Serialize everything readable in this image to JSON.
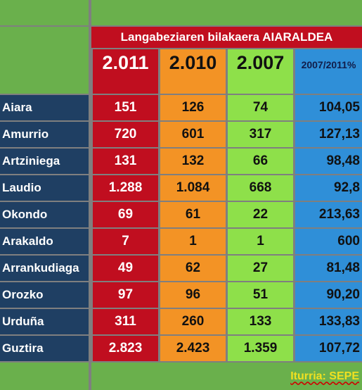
{
  "title": "Langabeziaren bilakaera AIARALDEA",
  "years": [
    "2.011",
    "2.010",
    "2.007",
    "2007/2011%"
  ],
  "rows": [
    {
      "name": "Aiara",
      "values": [
        "151",
        "126",
        "74",
        "104,05"
      ]
    },
    {
      "name": "Amurrio",
      "values": [
        "720",
        "601",
        "317",
        "127,13"
      ]
    },
    {
      "name": "Artziniega",
      "values": [
        "131",
        "132",
        "66",
        "98,48"
      ]
    },
    {
      "name": "Laudio",
      "values": [
        "1.288",
        "1.084",
        "668",
        "92,8"
      ]
    },
    {
      "name": "Okondo",
      "values": [
        "69",
        "61",
        "22",
        "213,63"
      ]
    },
    {
      "name": "Arakaldo",
      "values": [
        "7",
        "1",
        "1",
        "600"
      ]
    },
    {
      "name": "Arrankudiaga",
      "values": [
        "49",
        "62",
        "27",
        "81,48"
      ]
    },
    {
      "name": "Orozko",
      "values": [
        "97",
        "96",
        "51",
        "90,20"
      ]
    },
    {
      "name": "Urduña",
      "values": [
        "311",
        "260",
        "133",
        "133,83"
      ]
    },
    {
      "name": "Guztira",
      "values": [
        "2.823",
        "2.423",
        "1.359",
        "107,72"
      ]
    }
  ],
  "source": "Iturria: SEPE",
  "colors": {
    "green": "#6ab04c",
    "navy": "#1f3f63",
    "red": "#c00e1f",
    "orange": "#f39325",
    "lime": "#8ee04a",
    "blue": "#2f8fd8",
    "source_text": "#f0e020"
  }
}
